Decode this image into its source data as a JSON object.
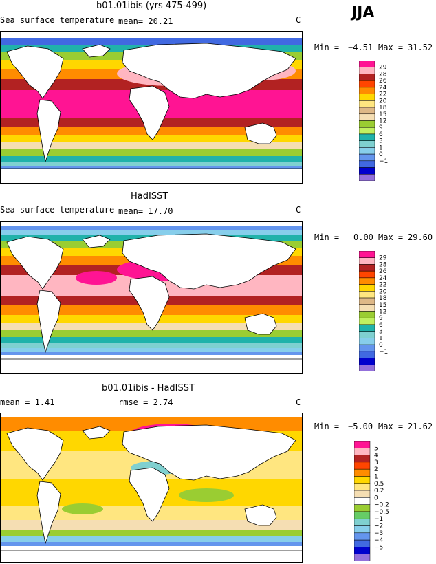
{
  "season": "JJA",
  "panels": [
    {
      "title": "b01.01ibis (yrs 475-499)",
      "left_label": "Sea surface temperature",
      "mid_label": "mean=  20.21",
      "units": "C",
      "min_label": "Min =",
      "min_value": "−4.51",
      "max_label": "Max =",
      "max_value": "31.52",
      "colorbar": {
        "colors": [
          "#ff1493",
          "#ffb6c1",
          "#b22222",
          "#ff4500",
          "#ff8c00",
          "#ffd700",
          "#ffe680",
          "#deb887",
          "#f5deb3",
          "#9acd32",
          "#c0f060",
          "#20b2aa",
          "#7fd0d0",
          "#87ceeb",
          "#6495ed",
          "#4169e1",
          "#0000cd",
          "#9370db"
        ],
        "labels": [
          "29",
          "28",
          "26",
          "24",
          "22",
          "20",
          "18",
          "15",
          "12",
          "9",
          "6",
          "3",
          "1",
          "0",
          "−1"
        ]
      }
    },
    {
      "title": "HadISST",
      "left_label": "Sea surface temperature",
      "mid_label": "mean=  17.70",
      "units": "C",
      "min_label": "Min =",
      "min_value": "0.00",
      "max_label": "Max =",
      "max_value": "29.60",
      "colorbar": {
        "colors": [
          "#ff1493",
          "#ffb6c1",
          "#b22222",
          "#ff4500",
          "#ff8c00",
          "#ffd700",
          "#ffe680",
          "#deb887",
          "#f5deb3",
          "#9acd32",
          "#c0f060",
          "#20b2aa",
          "#7fd0d0",
          "#87ceeb",
          "#6495ed",
          "#4169e1",
          "#0000cd",
          "#9370db"
        ],
        "labels": [
          "29",
          "28",
          "26",
          "24",
          "22",
          "20",
          "18",
          "15",
          "12",
          "9",
          "6",
          "3",
          "1",
          "0",
          "−1"
        ]
      }
    },
    {
      "title": "b01.01ibis - HadISST",
      "left_label": "mean =    1.41",
      "mid_label": "rmse =    2.74",
      "units": "C",
      "min_label": "Min =",
      "min_value": "−5.00",
      "max_label": "Max =",
      "max_value": "21.62",
      "colorbar": {
        "colors": [
          "#ff1493",
          "#ffb6c1",
          "#b22222",
          "#ff4500",
          "#ff8c00",
          "#ffd700",
          "#ffe680",
          "#f5deb3",
          "#ffffff",
          "#9acd32",
          "#66cc66",
          "#7fd0d0",
          "#87ceeb",
          "#6495ed",
          "#4169e1",
          "#0000cd",
          "#9370db"
        ],
        "labels": [
          "5",
          "4",
          "3",
          "2",
          "1",
          "0.5",
          "0.2",
          "0",
          "−0.2",
          "−0.5",
          "−1",
          "−2",
          "−3",
          "−4",
          "−5"
        ]
      }
    }
  ]
}
